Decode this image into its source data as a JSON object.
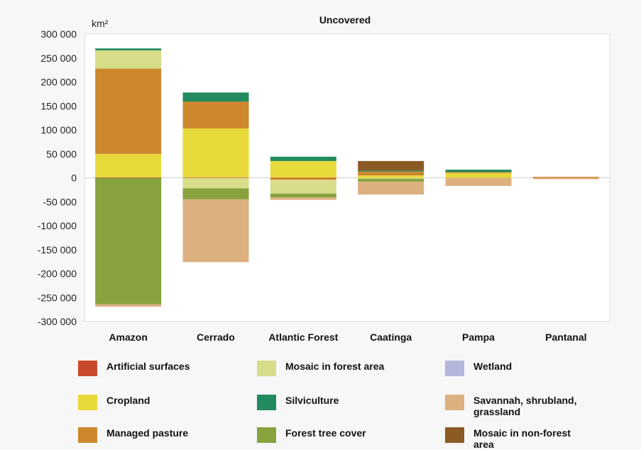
{
  "chart_data": {
    "type": "bar",
    "stacked": true,
    "title": "Uncovered",
    "ylabel": "km²",
    "ylim": [
      -300000,
      300000
    ],
    "yticks": [
      300000,
      250000,
      200000,
      150000,
      100000,
      50000,
      0,
      -50000,
      -100000,
      -150000,
      -200000,
      -250000,
      -300000
    ],
    "ytick_labels": [
      "300 000",
      "250 000",
      "200 000",
      "150 000",
      "100 000",
      "50 000",
      "0",
      "-50 000",
      "-100 000",
      "-150 000",
      "-200 000",
      "-250 000",
      "-300 000"
    ],
    "grid": false,
    "categories": [
      "Amazon",
      "Cerrado",
      "Atlantic Forest",
      "Caatinga",
      "Pampa",
      "Pantanal"
    ],
    "series": [
      {
        "name": "Artificial surfaces",
        "color": "#c94a2b",
        "values": [
          1000,
          1000,
          -2000,
          0,
          0,
          0
        ]
      },
      {
        "name": "Cropland",
        "color": "#e8d93a",
        "values": [
          49000,
          102000,
          35000,
          5000,
          10000,
          0
        ]
      },
      {
        "name": "Managed pasture",
        "color": "#cd872d",
        "values": [
          178000,
          56000,
          -2000,
          8000,
          2000,
          2000
        ]
      },
      {
        "name": "Mosaic in forest area",
        "color": "#d6dc88",
        "values": [
          38000,
          -22000,
          -29000,
          -2000,
          0,
          0
        ]
      },
      {
        "name": "Silviculture",
        "color": "#228a5f",
        "values": [
          4000,
          19000,
          9000,
          2000,
          5000,
          0
        ]
      },
      {
        "name": "Forest tree cover",
        "color": "#87a23e",
        "values": [
          -264000,
          -23000,
          -8000,
          -6000,
          0,
          0
        ]
      },
      {
        "name": "Wetland",
        "color": "#b5b6dc",
        "values": [
          0,
          0,
          0,
          0,
          0,
          0
        ]
      },
      {
        "name": "Savannah, shrubland, grassland",
        "color": "#dcb07f",
        "values": [
          -5000,
          -131000,
          -5000,
          -27000,
          -17000,
          -3000
        ]
      },
      {
        "name": "Mosaic in non-forest area",
        "color": "#8c5a24",
        "values": [
          0,
          0,
          0,
          20000,
          0,
          0
        ]
      }
    ],
    "legend_position": "bottom"
  }
}
